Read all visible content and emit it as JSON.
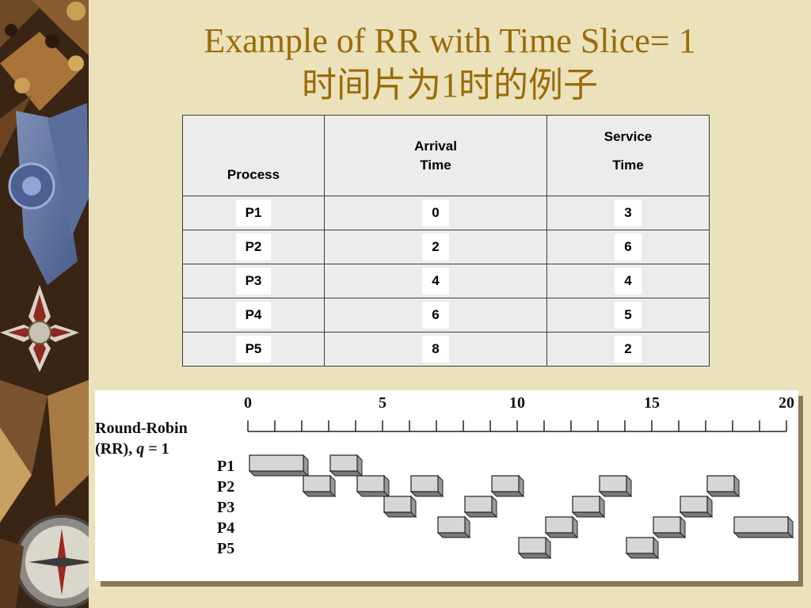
{
  "title": {
    "line1": "Example of RR with Time Slice= 1",
    "line2": "时间片为1时的例子"
  },
  "table": {
    "headers": {
      "process": "Process",
      "arrival_line1": "Arrival",
      "arrival_line2": "Time",
      "service_line1": "Service",
      "service_line2": "Time"
    },
    "rows": [
      {
        "process": "P1",
        "arrival": "0",
        "service": "3"
      },
      {
        "process": "P2",
        "arrival": "2",
        "service": "6"
      },
      {
        "process": "P3",
        "arrival": "4",
        "service": "4"
      },
      {
        "process": "P4",
        "arrival": "6",
        "service": "5"
      },
      {
        "process": "P5",
        "arrival": "8",
        "service": "2"
      }
    ]
  },
  "gantt": {
    "label_line1": "Round-Robin",
    "label_line2_prefix": "(RR), ",
    "label_q": "q",
    "label_line2_suffix": " = 1",
    "axis_min": 0,
    "axis_max": 20,
    "ticks": [
      "0",
      "5",
      "10",
      "15",
      "20"
    ],
    "processes": [
      "P1",
      "P2",
      "P3",
      "P4",
      "P5"
    ],
    "segments": [
      {
        "p": 0,
        "start": 0,
        "end": 2
      },
      {
        "p": 1,
        "start": 2,
        "end": 3
      },
      {
        "p": 0,
        "start": 3,
        "end": 4
      },
      {
        "p": 1,
        "start": 4,
        "end": 5
      },
      {
        "p": 2,
        "start": 5,
        "end": 6
      },
      {
        "p": 1,
        "start": 6,
        "end": 7
      },
      {
        "p": 3,
        "start": 7,
        "end": 8
      },
      {
        "p": 2,
        "start": 8,
        "end": 9
      },
      {
        "p": 1,
        "start": 9,
        "end": 10
      },
      {
        "p": 4,
        "start": 10,
        "end": 11
      },
      {
        "p": 3,
        "start": 11,
        "end": 12
      },
      {
        "p": 2,
        "start": 12,
        "end": 13
      },
      {
        "p": 1,
        "start": 13,
        "end": 14
      },
      {
        "p": 4,
        "start": 14,
        "end": 15
      },
      {
        "p": 3,
        "start": 15,
        "end": 16
      },
      {
        "p": 2,
        "start": 16,
        "end": 17
      },
      {
        "p": 1,
        "start": 17,
        "end": 18
      },
      {
        "p": 3,
        "start": 18,
        "end": 20
      }
    ]
  }
}
